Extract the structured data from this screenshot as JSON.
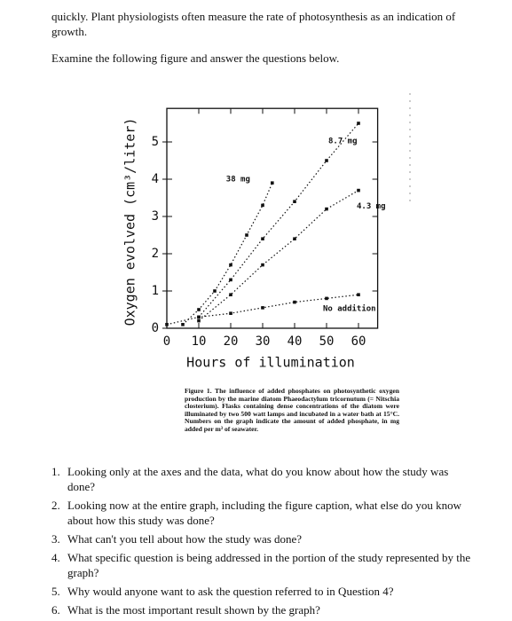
{
  "intro": {
    "lines": [
      "quickly. Plant physiologists often measure the rate of photosynthesis as an indication of growth.",
      "Examine the following figure and answer the questions below."
    ]
  },
  "chart_data": {
    "type": "line",
    "xlabel": "Hours of illumination",
    "ylabel": "Oxygen evolved (cm³/liter)",
    "xlim": [
      0,
      66
    ],
    "ylim": [
      0,
      5.9
    ],
    "xticks": [
      0,
      10,
      20,
      30,
      40,
      50,
      60
    ],
    "yticks": [
      0,
      1,
      2,
      3,
      4,
      5
    ],
    "series": [
      {
        "name": "38 mg",
        "color": "#111111",
        "x": [
          5,
          10,
          15,
          20,
          25,
          30,
          33
        ],
        "values": [
          0.1,
          0.5,
          1.0,
          1.7,
          2.5,
          3.3,
          3.9
        ]
      },
      {
        "name": "8.7 mg",
        "color": "#111111",
        "x": [
          10,
          20,
          30,
          40,
          50,
          60
        ],
        "values": [
          0.3,
          1.3,
          2.4,
          3.4,
          4.5,
          5.5
        ]
      },
      {
        "name": "4.3 mg",
        "color": "#111111",
        "x": [
          10,
          20,
          30,
          40,
          50,
          60
        ],
        "values": [
          0.2,
          0.9,
          1.7,
          2.4,
          3.2,
          3.7
        ]
      },
      {
        "name": "No addition",
        "color": "#111111",
        "x": [
          0,
          10,
          20,
          30,
          40,
          50,
          60
        ],
        "values": [
          0.1,
          0.3,
          0.4,
          0.55,
          0.7,
          0.8,
          0.9
        ]
      }
    ]
  },
  "caption": "Figure 1. The influence of added phosphates on photosynthetic oxygen production by the marine diatom Phaeodactylum tricornutum (= Nitschia closterium). Flasks containing dense concentrations of the diatom were illuminated by two 500 watt lamps and incubated in a water bath at 15°C. Numbers on the graph indicate the amount of added phosphate, in mg added per m³ of seawater.",
  "questions": [
    {
      "number": "1.",
      "text": "Looking only at the axes and the data, what do you know about how the study was done?"
    },
    {
      "number": "2.",
      "text": "Looking now at the entire graph, including the figure caption, what else do you know about how this study was done?"
    },
    {
      "number": "3.",
      "text": "What can't you tell about how the study was done?"
    },
    {
      "number": "4.",
      "text": "What specific question is being addressed in the portion of the study represented by the graph?"
    },
    {
      "number": "5.",
      "text": "Why would anyone want to ask the question referred to in Question 4?"
    },
    {
      "number": "6.",
      "text": "What is the most important result shown by the graph?"
    }
  ]
}
